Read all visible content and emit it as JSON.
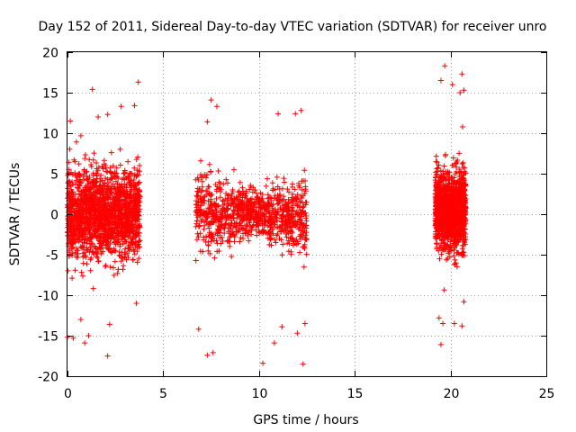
{
  "chart_data": {
    "type": "scatter",
    "title": "Day 152 of 2011, Sidereal Day-to-day VTEC variation (SDTVAR) for receiver unro",
    "xlabel": "GPS time / hours",
    "ylabel": "SDTVAR / TECUs",
    "xlim": [
      0,
      25
    ],
    "ylim": [
      -20,
      20
    ],
    "xticks": [
      0,
      5,
      10,
      15,
      20,
      25
    ],
    "yticks": [
      -20,
      -15,
      -10,
      -5,
      0,
      5,
      10,
      15,
      20
    ],
    "xtick_labels": [
      "0",
      "5",
      "10",
      "15",
      "20",
      "25"
    ],
    "ytick_labels": [
      "-20",
      "-15",
      "-10",
      "-5",
      "0",
      "5",
      "10",
      "15",
      "20"
    ],
    "grid": true,
    "marker": "plus",
    "color": "#ff0000",
    "series": [
      {
        "name": "SDTVAR",
        "clusters": [
          {
            "x_range": [
              0.0,
              3.8
            ],
            "y_center": 0.0,
            "y_spread": 4.5,
            "count": 1700
          },
          {
            "x_range": [
              6.7,
              12.5
            ],
            "y_center": 0.0,
            "y_spread": 3.5,
            "count": 1000
          },
          {
            "x_range": [
              19.2,
              20.8
            ],
            "y_center": 0.5,
            "y_spread": 4.0,
            "count": 1300
          }
        ],
        "points": [
          {
            "x": 0.0,
            "y": -15.2
          },
          {
            "x": 0.15,
            "y": 11.5
          },
          {
            "x": 0.3,
            "y": -15.3
          },
          {
            "x": 0.7,
            "y": -13.0
          },
          {
            "x": 0.9,
            "y": -15.9
          },
          {
            "x": 1.1,
            "y": -15.0
          },
          {
            "x": 1.3,
            "y": 15.4
          },
          {
            "x": 1.6,
            "y": 12.0
          },
          {
            "x": 2.1,
            "y": -17.5
          },
          {
            "x": 2.1,
            "y": 12.3
          },
          {
            "x": 2.2,
            "y": -13.6
          },
          {
            "x": 2.8,
            "y": 13.3
          },
          {
            "x": 3.7,
            "y": 16.3
          },
          {
            "x": 3.5,
            "y": 13.4
          },
          {
            "x": 3.6,
            "y": -11.0
          },
          {
            "x": 6.85,
            "y": -14.2
          },
          {
            "x": 7.3,
            "y": -17.4
          },
          {
            "x": 7.6,
            "y": -17.1
          },
          {
            "x": 7.5,
            "y": 14.1
          },
          {
            "x": 7.8,
            "y": 13.3
          },
          {
            "x": 7.3,
            "y": 11.4
          },
          {
            "x": 10.2,
            "y": -18.4
          },
          {
            "x": 10.8,
            "y": -15.9
          },
          {
            "x": 11.2,
            "y": -13.9
          },
          {
            "x": 11.0,
            "y": 12.4
          },
          {
            "x": 11.9,
            "y": 12.4
          },
          {
            "x": 12.2,
            "y": 12.8
          },
          {
            "x": 12.3,
            "y": -18.5
          },
          {
            "x": 12.0,
            "y": -14.7
          },
          {
            "x": 12.4,
            "y": -13.5
          },
          {
            "x": 19.5,
            "y": 16.5
          },
          {
            "x": 19.7,
            "y": 18.3
          },
          {
            "x": 20.6,
            "y": 17.3
          },
          {
            "x": 20.5,
            "y": 15.0
          },
          {
            "x": 20.7,
            "y": 15.3
          },
          {
            "x": 20.1,
            "y": 16.0
          },
          {
            "x": 19.4,
            "y": -12.8
          },
          {
            "x": 19.5,
            "y": -16.1
          },
          {
            "x": 19.6,
            "y": -13.5
          },
          {
            "x": 20.2,
            "y": -13.5
          },
          {
            "x": 20.6,
            "y": -13.8
          },
          {
            "x": 20.7,
            "y": -10.8
          }
        ]
      }
    ]
  }
}
